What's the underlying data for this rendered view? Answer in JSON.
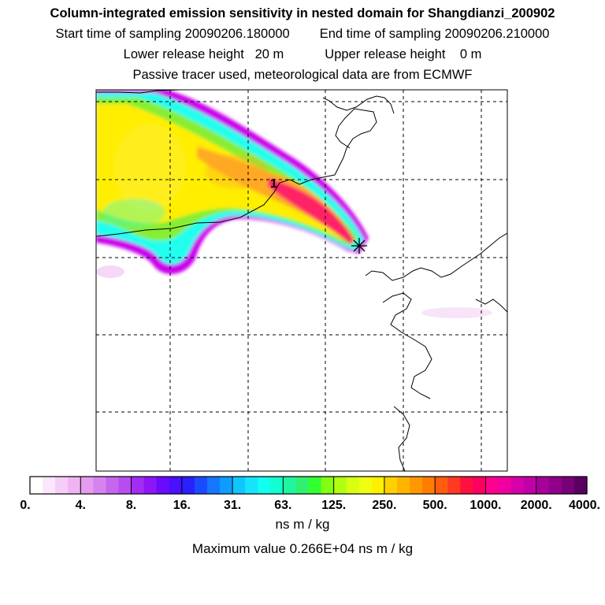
{
  "header": {
    "title": "Column-integrated emission sensitivity in nested domain for Shangdianzi_200902",
    "start_label": "Start time of sampling 20090206.180000",
    "end_label": "End time of sampling 20090206.210000",
    "lower_label": "Lower release height   20 m",
    "upper_label": "Upper release height    0 m",
    "note": "Passive tracer used, meteorological data are from ECMWF"
  },
  "map": {
    "release_marker_label": "1",
    "plume_colors": {
      "outer": "#cc00ee",
      "cyan": "#22ffee",
      "green": "#88ee33",
      "yellow": "#ffee00",
      "orange": "#ffaa22",
      "red": "#ff2266"
    }
  },
  "colorbar": {
    "tick_labels": [
      "0.",
      "4.",
      "8.",
      "16.",
      "31.",
      "63.",
      "125.",
      "250.",
      "500.",
      "1000.",
      "2000.",
      "4000."
    ],
    "colors": [
      "#ffffff",
      "#fbe6fb",
      "#f5cdf6",
      "#f0b4f2",
      "#e59cf0",
      "#d584ee",
      "#c566ec",
      "#b84cee",
      "#a32cf5",
      "#8f14f8",
      "#6a0aff",
      "#4a10ff",
      "#2a20ff",
      "#1a4cff",
      "#1577ff",
      "#0f9cff",
      "#10c6ff",
      "#16e4ff",
      "#10fff0",
      "#10ffd0",
      "#20f5a0",
      "#30f070",
      "#30ff30",
      "#80ff10",
      "#b0ff10",
      "#d8ff10",
      "#f0ff10",
      "#fff000",
      "#ffd000",
      "#ffb400",
      "#ff9800",
      "#ff7c00",
      "#ff5c10",
      "#ff3a20",
      "#ff1040",
      "#ff0060",
      "#ff0090",
      "#f000a0",
      "#d800a8",
      "#c000a8",
      "#a8009a",
      "#90008a",
      "#780078",
      "#5a005e"
    ],
    "units": "ns m / kg",
    "max_label": "Maximum value  0.266E+04 ns m / kg"
  }
}
